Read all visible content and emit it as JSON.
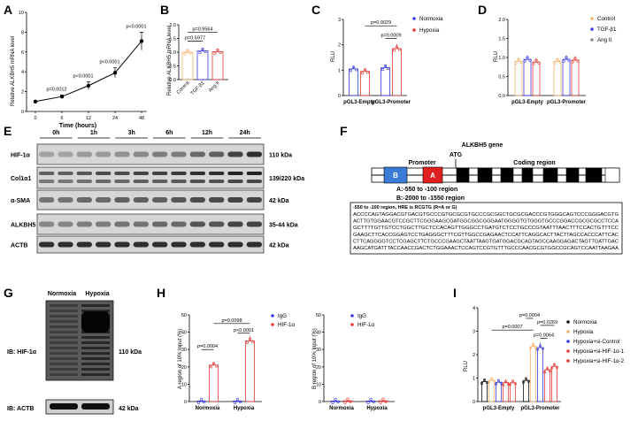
{
  "panels": [
    "A",
    "B",
    "C",
    "D",
    "E",
    "F",
    "G",
    "H",
    "I"
  ],
  "colors": {
    "blue": "#3a3adf",
    "red": "#e53935",
    "orange": "#f6b26b",
    "gray": "#888888",
    "black": "#111111"
  },
  "panelA": {
    "ylabel": "Relative ALKBH5 mRNA level",
    "xlabel": "Time (hours)",
    "chart_data": {
      "type": "line",
      "categories": [
        "0",
        "6",
        "12",
        "24",
        "48"
      ],
      "values": [
        1.0,
        1.5,
        2.6,
        3.9,
        7.1
      ],
      "errors": [
        0.05,
        0.15,
        0.4,
        0.5,
        0.9
      ],
      "ylim": [
        0,
        10
      ],
      "yticks": [
        "0",
        "2",
        "4",
        "6",
        "8",
        "10"
      ],
      "annotations": [
        "p=0.0012",
        "p<0.0001",
        "p<0.0001",
        "p<0.0001"
      ]
    }
  },
  "panelB": {
    "ylabel": "Relative ALKBH5 mRNA level",
    "chart_data": {
      "type": "bar",
      "categories": [
        "Control",
        "TGF-β1",
        "Ang II"
      ],
      "values": [
        1.0,
        1.05,
        1.02
      ],
      "ylim": [
        0,
        2.0
      ],
      "yticks": [
        "0.0",
        "0.5",
        "1.0",
        "1.5",
        "2.0"
      ],
      "annotations": [
        "p=0.5977",
        "p=0.9564"
      ]
    }
  },
  "panelC": {
    "ylabel": "RLU",
    "legend": [
      "Normoxia",
      "Hypoxia"
    ],
    "chart_data": {
      "type": "bar",
      "categories": [
        "pGL3-Empty",
        "pGL3-Promoter"
      ],
      "series": [
        {
          "name": "Normoxia",
          "values": [
            1.05,
            1.1
          ]
        },
        {
          "name": "Hypoxia",
          "values": [
            0.95,
            1.85
          ]
        }
      ],
      "ylim": [
        0,
        3
      ],
      "yticks": [
        "0",
        "1",
        "2",
        "3"
      ],
      "annotations": [
        "p=0.0029",
        "p=0.0009"
      ]
    }
  },
  "panelD": {
    "ylabel": "RLU",
    "legend": [
      "Control",
      "TGF-β1",
      "Ang II"
    ],
    "chart_data": {
      "type": "bar",
      "categories": [
        "pGL3-Empty",
        "pGL3-Promoter"
      ],
      "series": [
        {
          "name": "Control",
          "values": [
            0.9,
            0.9
          ]
        },
        {
          "name": "TGF-β1",
          "values": [
            0.95,
            0.95
          ]
        },
        {
          "name": "Ang II",
          "values": [
            0.88,
            0.93
          ]
        }
      ],
      "ylim": [
        0,
        2.0
      ],
      "yticks": [
        "0.0",
        "0.5",
        "1.0",
        "1.5",
        "2.0"
      ]
    }
  },
  "panelE": {
    "timepoints": [
      "0h",
      "1h",
      "3h",
      "6h",
      "12h",
      "24h"
    ],
    "blots": [
      {
        "name": "HIF-1α",
        "kda": "110 kDa"
      },
      {
        "name": "Col1α1",
        "kda": "139/220 kDa"
      },
      {
        "name": "α-SMA",
        "kda": "42 kDa"
      },
      {
        "name": "ALKBH5",
        "kda": "35-44 kDa"
      },
      {
        "name": "ACTB",
        "kda": "42 kDa"
      }
    ]
  },
  "panelF": {
    "title": "ALKBH5 gene",
    "promoter": "Promoter",
    "atg": "ATG",
    "coding": "Coding region",
    "box_b": "B",
    "box_a": "A",
    "region_a": "A:-550 to -100 region",
    "region_b": "B:-2000 to -1550 region",
    "seq_title": "-550 to -100 region, HRE is RCGTG (R=A or G)",
    "seq_lines": [
      "ACCCCAGTAGGACGTGACGTGCCCGTGCGCGTGCCCGCGGCTGCGCGACCCGTGGGCAGTCCCGGGACGTG",
      "ACTTGTGGAACGTCCGCTTCGGGAAGCGATGGCGGCGGGAATGGGGTGTGGGTGCCCGGACCGCGCGCCTCCA",
      "GCTTTTGTTGTCCTGGCTTGCTCCACAGTTGGGCCTGATGTCTCCTGCCCGTAATTTAACTTTCCACTGTTTCC",
      "GAAGCTTCACCGGAGTCCTGAGGGCTTTCGTTGGCCGAGAACTCCATTCAGGCACTTACTTAGCCACCCATTCAC",
      "CTTCAGGGGTCCTCGAGCTTCTGCCCGAAGCTAATTAAGTGATGGACGCAGTAGCCAAGGAGACTAGTTGATTGAC",
      "AAGCATGATTTACCAACCGACTCTGGAAACTCCAGTCCGTGTTTGCCCAACGCGTGGCCGCAGTCCAATTAAGAA"
    ]
  },
  "panelG": {
    "cols": [
      "Normoxia",
      "Hypoxia"
    ],
    "blots": [
      {
        "name": "IB: HIF-1α",
        "kda": "110 kDa"
      },
      {
        "name": "IB: ACTB",
        "kda": "42 kDa"
      }
    ]
  },
  "panelH": {
    "left": {
      "ylabel": "A region of 10% Input (%)",
      "legend": [
        "IgG",
        "HIF-1α"
      ],
      "chart_data": {
        "type": "bar",
        "categories": [
          "Normoxia",
          "Hypoxia"
        ],
        "series": [
          {
            "name": "IgG",
            "values": [
              0.3,
              0.3
            ]
          },
          {
            "name": "HIF-1α",
            "values": [
              21,
              35
            ]
          }
        ],
        "ylim": [
          0,
          50
        ],
        "yticks": [
          "0",
          "10",
          "20",
          "30",
          "40",
          "50"
        ],
        "annotations": [
          "p=0.0098",
          "p=0.0004",
          "p<0.0001"
        ]
      }
    },
    "right": {
      "ylabel": "B region of 10% Input (%)",
      "legend": [
        "IgG",
        "HIF-1α"
      ],
      "chart_data": {
        "type": "bar",
        "categories": [
          "Normoxia",
          "Hypoxia"
        ],
        "series": [
          {
            "name": "IgG",
            "values": [
              0.3,
              0.3
            ]
          },
          {
            "name": "HIF-1α",
            "values": [
              0.4,
              0.4
            ]
          }
        ],
        "ylim": [
          0,
          50
        ],
        "yticks": [
          "0",
          "10",
          "20",
          "30",
          "40",
          "50"
        ]
      }
    }
  },
  "panelI": {
    "ylabel": "RLU",
    "legend": [
      "Normoxia",
      "Hypoxia",
      "Hypoxia+si-Control",
      "Hypoxia+si-HIF-1α-1",
      "Hypoxia+si-HIF-1α-2"
    ],
    "chart_data": {
      "type": "bar",
      "categories": [
        "pGL3-Empty",
        "pGL3-Promoter"
      ],
      "series": [
        {
          "name": "Normoxia",
          "values": [
            0.85,
            0.9
          ]
        },
        {
          "name": "Hypoxia",
          "values": [
            0.9,
            2.35
          ]
        },
        {
          "name": "Hypoxia+si-Control",
          "values": [
            0.82,
            2.3
          ]
        },
        {
          "name": "Hypoxia+si-HIF-1α-1",
          "values": [
            0.8,
            1.35
          ]
        },
        {
          "name": "Hypoxia+si-HIF-1α-2",
          "values": [
            0.8,
            1.5
          ]
        }
      ],
      "ylim": [
        0,
        4
      ],
      "yticks": [
        "0",
        "1",
        "2",
        "3",
        "4"
      ],
      "annotations": [
        "p=0.0004",
        "p=0.0269",
        "p=0.0007",
        "p=0.0064"
      ]
    }
  }
}
